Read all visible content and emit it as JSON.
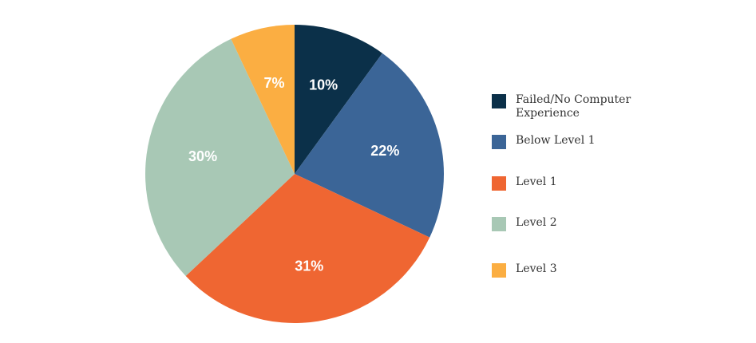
{
  "chart_data": {
    "type": "pie",
    "categories": [
      "Failed/No Computer Experience",
      "Below Level 1",
      "Level 1",
      "Level 2",
      "Level 3"
    ],
    "values": [
      10,
      22,
      31,
      30,
      7
    ],
    "data_labels": [
      "10%",
      "22%",
      "31%",
      "30%",
      "7%"
    ],
    "colors": [
      "#0b3049",
      "#3b6597",
      "#ef6632",
      "#a8c8b5",
      "#fbae42"
    ],
    "start_angle_deg": 0,
    "direction": "clockwise",
    "legend": {
      "position": "right",
      "items": [
        {
          "label": "Failed/No Computer Experience",
          "color": "#0b3049"
        },
        {
          "label": "Below Level 1",
          "color": "#3b6597"
        },
        {
          "label": "Level 1",
          "color": "#ef6632"
        },
        {
          "label": "Level 2",
          "color": "#a8c8b5"
        },
        {
          "label": "Level 3",
          "color": "#fbae42"
        }
      ]
    }
  }
}
